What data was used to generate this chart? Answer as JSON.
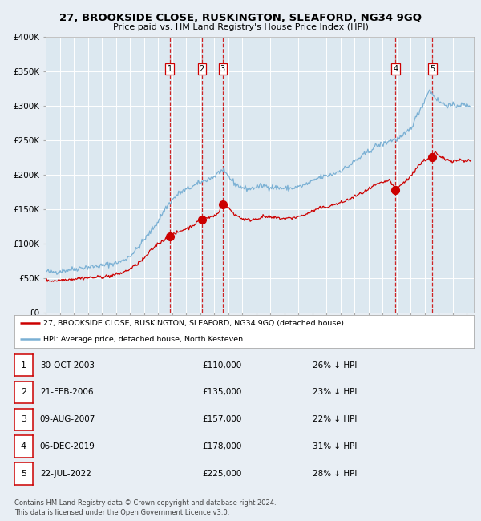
{
  "title": "27, BROOKSIDE CLOSE, RUSKINGTON, SLEAFORD, NG34 9GQ",
  "subtitle": "Price paid vs. HM Land Registry's House Price Index (HPI)",
  "sale_dates_display": [
    "30-OCT-2003",
    "21-FEB-2006",
    "09-AUG-2007",
    "06-DEC-2019",
    "22-JUL-2022"
  ],
  "sale_prices": [
    110000,
    135000,
    157000,
    178000,
    225000
  ],
  "sale_prices_display": [
    "£110,000",
    "£135,000",
    "£157,000",
    "£178,000",
    "£225,000"
  ],
  "sale_hpi_diff": [
    "26% ↓ HPI",
    "23% ↓ HPI",
    "22% ↓ HPI",
    "31% ↓ HPI",
    "28% ↓ HPI"
  ],
  "legend_line1": "27, BROOKSIDE CLOSE, RUSKINGTON, SLEAFORD, NG34 9GQ (detached house)",
  "legend_line2": "HPI: Average price, detached house, North Kesteven",
  "footer1": "Contains HM Land Registry data © Crown copyright and database right 2024.",
  "footer2": "This data is licensed under the Open Government Licence v3.0.",
  "hpi_color": "#7ab0d4",
  "price_color": "#cc0000",
  "bg_color": "#e8eef4",
  "plot_bg": "#dce8f0",
  "grid_color": "#ffffff",
  "dashed_color": "#cc0000",
  "ylim": [
    0,
    400000
  ],
  "yticks": [
    0,
    50000,
    100000,
    150000,
    200000,
    250000,
    300000,
    350000,
    400000
  ],
  "xstart": 1995.0,
  "xend": 2025.5,
  "sale_years": [
    2003.83,
    2006.13,
    2007.61,
    2019.92,
    2022.55
  ]
}
